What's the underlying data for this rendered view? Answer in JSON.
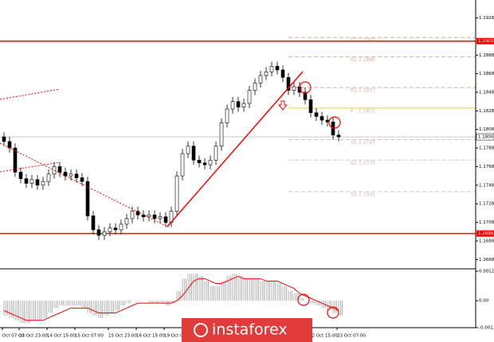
{
  "chart_data": [
    {
      "type": "candlestick",
      "categories": [
        "Oct 07:00",
        null,
        null,
        "13 Oct 23:00",
        null,
        null,
        null,
        null,
        "14 Oct 15:00",
        null,
        null,
        null,
        null,
        "15 Oct 07:00",
        null,
        null,
        null,
        null,
        null,
        "15 Oct 23:00",
        null,
        null,
        null,
        null,
        "16 Oct 15:00",
        null,
        null,
        null,
        null,
        "19 Oct 07:00",
        null,
        null,
        null,
        null,
        null,
        null,
        null,
        null,
        null,
        null,
        null,
        null,
        null,
        null,
        null,
        null,
        null,
        null,
        null,
        null,
        null,
        null,
        null,
        null,
        null,
        "22 Oct 15:00",
        null,
        null,
        null,
        null,
        "23 Oct 07:00"
      ],
      "open": [
        1.18,
        1.1795,
        1.1788,
        1.1762,
        1.1755,
        1.175,
        1.1754,
        1.1748,
        1.1752,
        1.176,
        1.1768,
        1.1762,
        1.1758,
        1.176,
        1.1756,
        1.1752,
        1.1715,
        1.17,
        1.1694,
        1.1698,
        1.1702,
        1.17,
        1.1706,
        1.1712,
        1.172,
        1.1716,
        1.1714,
        1.1716,
        1.1712,
        1.1714,
        1.1708,
        1.172,
        1.1758,
        1.1782,
        1.179,
        1.1775,
        1.1772,
        1.177,
        1.1775,
        1.179,
        1.1815,
        1.183,
        1.1838,
        1.1832,
        1.1836,
        1.185,
        1.1858,
        1.1866,
        1.187,
        1.1876,
        1.1872,
        1.1864,
        1.185,
        1.1854,
        1.1848,
        1.184,
        1.1826,
        1.1822,
        1.1818,
        1.1816,
        1.1802
      ],
      "high": [
        1.1805,
        1.18,
        1.1793,
        1.1767,
        1.176,
        1.1759,
        1.1759,
        1.1757,
        1.1765,
        1.1773,
        1.1773,
        1.1767,
        1.1765,
        1.1765,
        1.1761,
        1.1757,
        1.172,
        1.1705,
        1.1703,
        1.1707,
        1.1707,
        1.1711,
        1.1717,
        1.1725,
        1.1725,
        1.1721,
        1.1721,
        1.1721,
        1.1719,
        1.1719,
        1.1725,
        1.1763,
        1.1787,
        1.1795,
        1.1795,
        1.178,
        1.1777,
        1.178,
        1.1795,
        1.182,
        1.1835,
        1.1843,
        1.1843,
        1.1841,
        1.1855,
        1.1863,
        1.1871,
        1.1875,
        1.1881,
        1.1881,
        1.1877,
        1.1869,
        1.1859,
        1.1859,
        1.1853,
        1.1845,
        1.1831,
        1.1827,
        1.1823,
        1.1821,
        1.1807
      ],
      "low": [
        1.179,
        1.1783,
        1.1757,
        1.175,
        1.1745,
        1.1745,
        1.1743,
        1.1743,
        1.1747,
        1.1755,
        1.1757,
        1.1753,
        1.1753,
        1.1751,
        1.1747,
        1.171,
        1.1695,
        1.1689,
        1.1689,
        1.1693,
        1.1695,
        1.1695,
        1.1701,
        1.1707,
        1.1711,
        1.1709,
        1.1709,
        1.1707,
        1.1707,
        1.1703,
        1.1703,
        1.1715,
        1.1753,
        1.1777,
        1.177,
        1.1767,
        1.1765,
        1.1765,
        1.177,
        1.1785,
        1.181,
        1.1825,
        1.1827,
        1.1827,
        1.1831,
        1.1845,
        1.1853,
        1.1861,
        1.1865,
        1.1867,
        1.1859,
        1.1845,
        1.1845,
        1.1843,
        1.1835,
        1.1821,
        1.1817,
        1.1813,
        1.1811,
        1.1797,
        1.1795
      ],
      "close": [
        1.1795,
        1.1788,
        1.1762,
        1.1755,
        1.175,
        1.1754,
        1.1748,
        1.1752,
        1.176,
        1.1768,
        1.1762,
        1.1758,
        1.176,
        1.1756,
        1.1752,
        1.1715,
        1.17,
        1.1694,
        1.1698,
        1.1702,
        1.17,
        1.1706,
        1.1712,
        1.172,
        1.1716,
        1.1714,
        1.1716,
        1.1712,
        1.1714,
        1.1708,
        1.172,
        1.1758,
        1.1782,
        1.179,
        1.1775,
        1.1772,
        1.177,
        1.1775,
        1.179,
        1.1815,
        1.183,
        1.1838,
        1.1832,
        1.1836,
        1.185,
        1.1858,
        1.1866,
        1.187,
        1.1876,
        1.1872,
        1.1864,
        1.185,
        1.1854,
        1.1848,
        1.184,
        1.1826,
        1.1822,
        1.1818,
        1.1816,
        1.1802,
        1.18
      ],
      "color": "#000000",
      "ylim": [
        1.1658,
        1.1943
      ],
      "yticks": [
        1.1928,
        1.1888,
        1.1868,
        1.1848,
        1.1828,
        1.1808,
        1.1788,
        1.1768,
        1.1748,
        1.1728,
        1.1708,
        1.1688,
        1.1668
      ],
      "levels": [
        {
          "value": 1.1903,
          "color": "#ff0000"
        },
        {
          "value": 1.1696,
          "color": "#ff0000"
        }
      ],
      "current_price": {
        "value": 1.18,
        "label": "1.1800"
      },
      "pivots": [
        {
          "name": "R3",
          "value": 1.1907,
          "color": "#e8a898"
        },
        {
          "name": "R2",
          "value": 1.1886,
          "color": "#e8a898"
        },
        {
          "name": "R1",
          "value": 1.1853,
          "color": "#e8a898"
        },
        {
          "name": "P",
          "value": 1.1831,
          "color": "#e8e000"
        },
        {
          "name": "S1",
          "value": 1.1797,
          "color": "#c8c8c8"
        },
        {
          "name": "S2",
          "value": 1.1775,
          "color": "#c8c8c8"
        },
        {
          "name": "S3",
          "value": 1.1741,
          "color": "#c8c8c8"
        }
      ]
    },
    {
      "type": "macd",
      "histogram": {
        "color": "#a0a0a0",
        "values": [
          -0.0006,
          -0.0007,
          -0.0008,
          -0.0009,
          -0.0009,
          -0.0008,
          -0.0008,
          -0.0007,
          -0.0005,
          -0.0003,
          -0.0002,
          -0.0002,
          -0.0002,
          -0.0002,
          -0.0003,
          -0.0005,
          -0.0006,
          -0.0007,
          -0.0006,
          -0.0005,
          -0.0004,
          -0.0002,
          -0.0001,
          0.0,
          0.0,
          0.0,
          -0.0001,
          -0.0001,
          -0.0001,
          -0.0002,
          -0.0001,
          0.0004,
          0.0009,
          0.0011,
          0.0011,
          0.001,
          0.0008,
          0.0006,
          0.0006,
          0.0008,
          0.001,
          0.0011,
          0.001,
          0.0009,
          0.0009,
          0.0009,
          0.0008,
          0.0008,
          0.0008,
          0.0007,
          0.0006,
          0.0004,
          0.0003,
          0.0001,
          0.0,
          -0.0001,
          -0.0002,
          -0.0003,
          -0.0004,
          -0.0005,
          -0.0006
        ]
      },
      "signal": {
        "color": "#ff0000",
        "values": [
          -0.0004,
          -0.0005,
          -0.0006,
          -0.0007,
          -0.0008,
          -0.0008,
          -0.0008,
          -0.0008,
          -0.0007,
          -0.0006,
          -0.0005,
          -0.0004,
          -0.0003,
          -0.0003,
          -0.0003,
          -0.0003,
          -0.0004,
          -0.0005,
          -0.0005,
          -0.0005,
          -0.0005,
          -0.0004,
          -0.0003,
          -0.0002,
          -0.0001,
          -0.0001,
          -0.0001,
          -0.0001,
          -0.0001,
          -0.0001,
          -0.0001,
          0.0,
          0.0002,
          0.0005,
          0.0008,
          0.0009,
          0.0009,
          0.0008,
          0.0007,
          0.0007,
          0.0008,
          0.0009,
          0.001,
          0.0009,
          0.0009,
          0.0009,
          0.0009,
          0.0008,
          0.0008,
          0.0008,
          0.0007,
          0.0006,
          0.0005,
          0.0003,
          0.0002,
          0.0001,
          0.0,
          -0.0001,
          -0.0002,
          -0.0003,
          -0.0004
        ]
      },
      "ylim": [
        -0.0011,
        0.0013
      ],
      "yticks": [
        0.0012,
        {
          "value": 0,
          "label": "0.00"
        },
        -0.0011
      ]
    }
  ],
  "watermark": "instaforex"
}
